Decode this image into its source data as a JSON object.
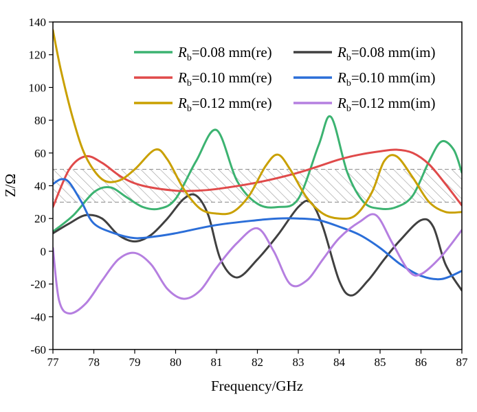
{
  "chart_data": {
    "type": "line",
    "xlabel": "Frequency/GHz",
    "ylabel": "Z/Ω",
    "xlim": [
      77,
      87
    ],
    "ylim": [
      -60,
      140
    ],
    "xticks": [
      77,
      78,
      79,
      80,
      81,
      82,
      83,
      84,
      85,
      86,
      87
    ],
    "yticks": [
      -60,
      -40,
      -20,
      0,
      20,
      40,
      60,
      80,
      100,
      120,
      140
    ],
    "grid": false,
    "legend_position": "top-right",
    "hatched_band": {
      "y_from": 30,
      "y_to": 50
    },
    "series": [
      {
        "name_prefix": "R",
        "name_sub": "b",
        "name_suffix": "=0.08 mm(re)",
        "color": "#3cb371",
        "x": [
          77,
          77.5,
          78,
          78.4,
          78.8,
          79.2,
          79.6,
          80,
          80.5,
          81,
          81.5,
          82,
          82.5,
          83,
          83.5,
          83.8,
          84.2,
          84.6,
          85,
          85.4,
          85.8,
          86.2,
          86.5,
          86.8,
          87
        ],
        "y": [
          12,
          22,
          36,
          39,
          33,
          27,
          26,
          32,
          55,
          74,
          43,
          29,
          27,
          32,
          65,
          82,
          48,
          30,
          26,
          27,
          34,
          55,
          67,
          62,
          48
        ]
      },
      {
        "name_prefix": "R",
        "name_sub": "b",
        "name_suffix": "=0.08 mm(im)",
        "color": "#404040",
        "x": [
          77,
          77.4,
          77.8,
          78.2,
          78.6,
          79,
          79.4,
          79.8,
          80.2,
          80.5,
          80.8,
          81.1,
          81.5,
          82,
          82.5,
          83,
          83.3,
          83.6,
          84,
          84.3,
          84.7,
          85.1,
          85.5,
          86,
          86.3,
          86.6,
          87
        ],
        "y": [
          11,
          17,
          22,
          20,
          10,
          6,
          10,
          20,
          32,
          34,
          22,
          -5,
          -16,
          -5,
          10,
          27,
          30,
          15,
          -18,
          -27,
          -18,
          -5,
          7,
          19,
          15,
          -8,
          -24
        ]
      },
      {
        "name_prefix": "R",
        "name_sub": "b",
        "name_suffix": "=0.10 mm(re)",
        "color": "#e04a4a",
        "x": [
          77,
          77.4,
          77.8,
          78.2,
          78.7,
          79.2,
          80,
          80.5,
          81,
          82,
          83,
          84,
          84.5,
          85,
          85.4,
          85.8,
          86.2,
          86.6,
          87
        ],
        "y": [
          27,
          50,
          58,
          54,
          45,
          40,
          37,
          37,
          38,
          42,
          48,
          56,
          59,
          61,
          62,
          60,
          53,
          41,
          28
        ]
      },
      {
        "name_prefix": "R",
        "name_sub": "b",
        "name_suffix": "=0.10 mm(im)",
        "color": "#2b6ed8",
        "x": [
          77,
          77.2,
          77.4,
          77.7,
          78,
          78.5,
          79,
          79.5,
          80,
          81,
          82,
          82.5,
          83,
          83.5,
          84,
          84.5,
          85,
          85.5,
          86,
          86.5,
          87
        ],
        "y": [
          41,
          44,
          42,
          30,
          17,
          11,
          8,
          9,
          11,
          16,
          19,
          20,
          20,
          19,
          15,
          10,
          2,
          -8,
          -15,
          -17,
          -12
        ]
      },
      {
        "name_prefix": "R",
        "name_sub": "b",
        "name_suffix": "=0.12 mm(re)",
        "color": "#c9a000",
        "x": [
          77,
          77.2,
          77.5,
          77.8,
          78.2,
          78.6,
          79,
          79.5,
          79.8,
          80.2,
          80.6,
          81,
          81.4,
          81.8,
          82.2,
          82.5,
          82.8,
          83.2,
          83.6,
          84,
          84.4,
          84.8,
          85.1,
          85.4,
          85.8,
          86.2,
          86.6,
          87
        ],
        "y": [
          135,
          110,
          80,
          58,
          44,
          43,
          50,
          62,
          56,
          38,
          26,
          23,
          24,
          34,
          52,
          59,
          50,
          33,
          23,
          20,
          22,
          36,
          55,
          58,
          45,
          30,
          24,
          24
        ]
      },
      {
        "name_prefix": "R",
        "name_sub": "b",
        "name_suffix": "=0.12 mm(im)",
        "color": "#b57fe0",
        "x": [
          77,
          77.15,
          77.4,
          77.8,
          78.2,
          78.6,
          79,
          79.4,
          79.8,
          80.2,
          80.6,
          81,
          81.5,
          82,
          82.4,
          82.8,
          83.2,
          83.6,
          84,
          84.5,
          84.9,
          85.3,
          85.7,
          86,
          86.5,
          87
        ],
        "y": [
          2,
          -30,
          -38,
          -32,
          -18,
          -5,
          -1,
          -8,
          -23,
          -29,
          -24,
          -10,
          5,
          14,
          0,
          -20,
          -18,
          -5,
          8,
          18,
          22,
          5,
          -12,
          -14,
          -3,
          13
        ]
      }
    ]
  }
}
